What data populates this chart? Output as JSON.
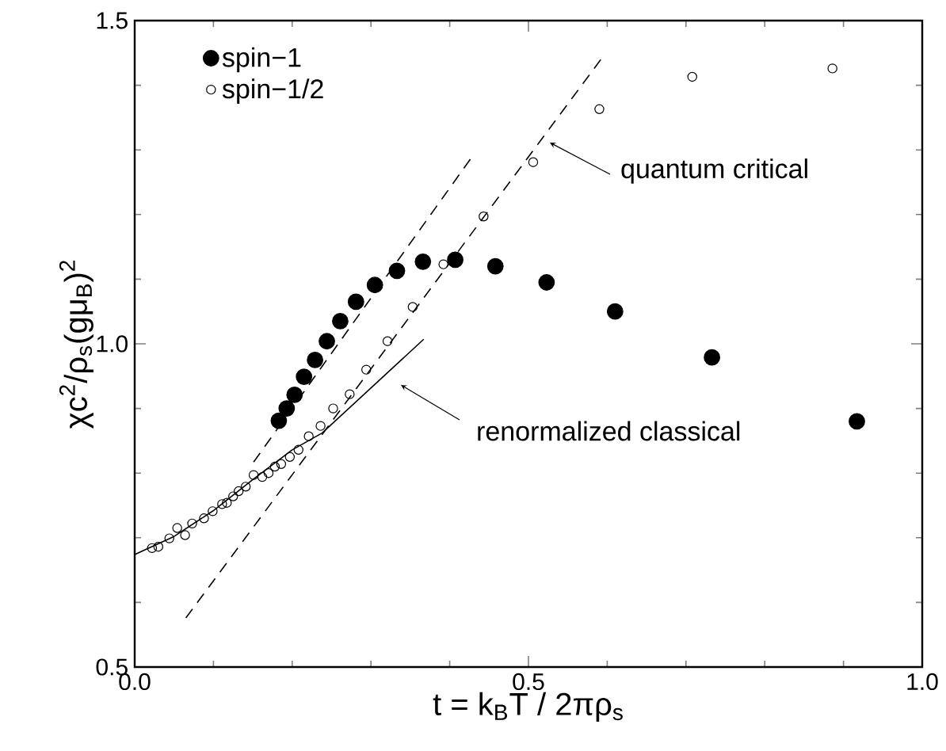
{
  "chart_data": {
    "type": "scatter",
    "xlabel": "t = k$_{B}$T / 2πρ$_{s}$",
    "ylabel": "χc$^{2}$/ρ$_{s}$(gμ$_{B}$)$^{2}$",
    "xlim": [
      0,
      1
    ],
    "ylim": [
      0.5,
      1.5
    ],
    "xticks": [
      {
        "value": 0,
        "label": "0.0"
      },
      {
        "value": 0.5,
        "label": "0.5"
      },
      {
        "value": 1,
        "label": "1.0"
      }
    ],
    "yticks": [
      {
        "value": 0.5,
        "label": "0.5"
      },
      {
        "value": 1,
        "label": "1.0"
      },
      {
        "value": 1.5,
        "label": "1.5"
      }
    ],
    "legend": "top left",
    "grid": false,
    "series": [
      {
        "name": "spin−1",
        "marker": "circle",
        "color": "#000000",
        "x": [
          0.183,
          0.193,
          0.203,
          0.215,
          0.229,
          0.244,
          0.261,
          0.281,
          0.305,
          0.333,
          0.366,
          0.407,
          0.458,
          0.523,
          0.61,
          0.733,
          0.917
        ],
        "values": [
          0.881,
          0.9,
          0.921,
          0.949,
          0.975,
          1.004,
          1.035,
          1.065,
          1.091,
          1.113,
          1.127,
          1.13,
          1.12,
          1.095,
          1.05,
          0.979,
          0.88
        ]
      },
      {
        "name": "spin−1/2",
        "marker": "circle",
        "color": "#000000",
        "x": [
          0.022,
          0.03,
          0.044,
          0.054,
          0.064,
          0.073,
          0.088,
          0.099,
          0.111,
          0.117,
          0.125,
          0.132,
          0.141,
          0.151,
          0.162,
          0.17,
          0.178,
          0.186,
          0.197,
          0.208,
          0.221,
          0.236,
          0.252,
          0.273,
          0.294,
          0.321,
          0.353,
          0.392,
          0.443,
          0.506,
          0.59,
          0.708,
          0.886
        ],
        "values": [
          0.684,
          0.686,
          0.699,
          0.715,
          0.704,
          0.722,
          0.73,
          0.741,
          0.752,
          0.754,
          0.764,
          0.772,
          0.779,
          0.797,
          0.794,
          0.8,
          0.81,
          0.814,
          0.825,
          0.836,
          0.857,
          0.873,
          0.9,
          0.922,
          0.96,
          1.004,
          1.057,
          1.123,
          1.197,
          1.281,
          1.363,
          1.413,
          1.426
        ]
      },
      {
        "type": "line",
        "marker": "none",
        "line_style": "solid",
        "color": "#000000",
        "x": [
          0,
          0.05,
          0.1,
          0.15,
          0.2,
          0.238,
          0.367
        ],
        "values": [
          0.674,
          0.702,
          0.742,
          0.79,
          0.836,
          0.862,
          1.007
        ]
      },
      {
        "type": "line",
        "marker": "none",
        "line_style": "dashed",
        "color": "#000000",
        "x": [
          0.151,
          0.427
        ],
        "values": [
          0.817,
          1.287
        ]
      },
      {
        "type": "line",
        "marker": "none",
        "line_style": "dashed",
        "color": "#000000",
        "x": [
          0.065,
          0.592
        ],
        "values": [
          0.576,
          1.44
        ]
      }
    ],
    "annotations": [
      "quantum critical",
      "renormalized classical"
    ]
  }
}
